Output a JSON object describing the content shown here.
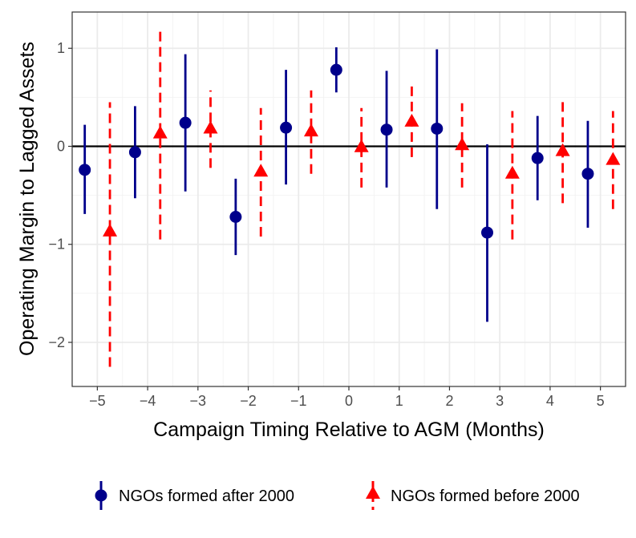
{
  "chart_data": {
    "type": "scatter",
    "title": "",
    "xlabel": "Campaign Timing Relative to AGM (Months)",
    "ylabel": "Operating Margin to Lagged Assets",
    "xlim": [
      -5.5,
      5.5
    ],
    "ylim": [
      -2.45,
      1.37
    ],
    "x_ticks": [
      -5,
      -4,
      -3,
      -2,
      -1,
      0,
      1,
      2,
      3,
      4,
      5
    ],
    "x_tick_labels": [
      "−5",
      "−4",
      "−3",
      "−2",
      "−1",
      "0",
      "1",
      "2",
      "3",
      "4",
      "5"
    ],
    "y_ticks": [
      -2,
      -1,
      0,
      1
    ],
    "y_tick_labels": [
      "−2",
      "−1",
      "0",
      "1"
    ],
    "reference_line_y": 0,
    "legend_position": "bottom",
    "series": [
      {
        "name": "NGOs formed after 2000",
        "color": "#00008b",
        "marker": "circle",
        "line_style": "solid",
        "x": [
          -5.25,
          -4.25,
          -3.25,
          -2.25,
          -1.25,
          -0.25,
          0.75,
          1.75,
          2.75,
          3.75,
          4.75
        ],
        "estimate": [
          -0.24,
          -0.06,
          0.24,
          -0.72,
          0.19,
          0.78,
          0.17,
          0.18,
          -0.88,
          -0.12,
          -0.28
        ],
        "ci_low": [
          -0.69,
          -0.53,
          -0.46,
          -1.11,
          -0.39,
          0.55,
          -0.42,
          -0.64,
          -1.79,
          -0.55,
          -0.83
        ],
        "ci_high": [
          0.22,
          0.41,
          0.94,
          -0.33,
          0.78,
          1.01,
          0.77,
          0.99,
          0.02,
          0.31,
          0.26
        ]
      },
      {
        "name": "NGOs formed before 2000",
        "color": "#ff0000",
        "marker": "triangle",
        "line_style": "dashed",
        "x": [
          -4.75,
          -3.75,
          -2.75,
          -1.75,
          -0.75,
          0.25,
          1.25,
          2.25,
          3.25,
          4.25,
          5.25
        ],
        "estimate": [
          -0.87,
          0.13,
          0.18,
          -0.26,
          0.15,
          -0.01,
          0.25,
          0.01,
          -0.28,
          -0.05,
          -0.14
        ],
        "ci_low": [
          -2.25,
          -0.95,
          -0.22,
          -0.92,
          -0.28,
          -0.42,
          -0.11,
          -0.42,
          -0.95,
          -0.58,
          -0.64
        ],
        "ci_high": [
          0.45,
          1.2,
          0.57,
          0.39,
          0.57,
          0.39,
          0.61,
          0.44,
          0.36,
          0.47,
          0.36
        ]
      }
    ]
  }
}
